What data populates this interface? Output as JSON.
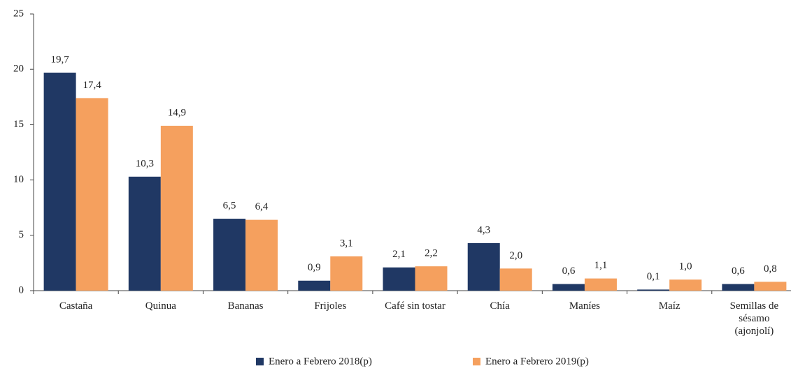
{
  "chart_data": {
    "type": "bar",
    "categories": [
      "Castaña",
      "Quinua",
      "Bananas",
      "Frijoles",
      "Café sin tostar",
      "Chía",
      "Maníes",
      "Maíz",
      "Semillas de sésamo (ajonjolí)"
    ],
    "series": [
      {
        "name": "Enero a Febrero 2018(p)",
        "color": "#203864",
        "values": [
          19.7,
          10.3,
          6.5,
          0.9,
          2.1,
          4.3,
          0.6,
          0.1,
          0.6
        ],
        "value_labels": [
          "19,7",
          "10,3",
          "6,5",
          "0,9",
          "2,1",
          "4,3",
          "0,6",
          "0,1",
          "0,6"
        ]
      },
      {
        "name": "Enero a Febrero 2019(p)",
        "color": "#f5a05e",
        "values": [
          17.4,
          14.9,
          6.4,
          3.1,
          2.2,
          2.0,
          1.1,
          1.0,
          0.8
        ],
        "value_labels": [
          "17,4",
          "14,9",
          "6,4",
          "3,1",
          "2,2",
          "2,0",
          "1,1",
          "1,0",
          "0,8"
        ]
      }
    ],
    "ylim": [
      0,
      25
    ],
    "yticks": [
      0,
      5,
      10,
      15,
      20,
      25
    ],
    "grid": false,
    "legend": "bottom"
  }
}
